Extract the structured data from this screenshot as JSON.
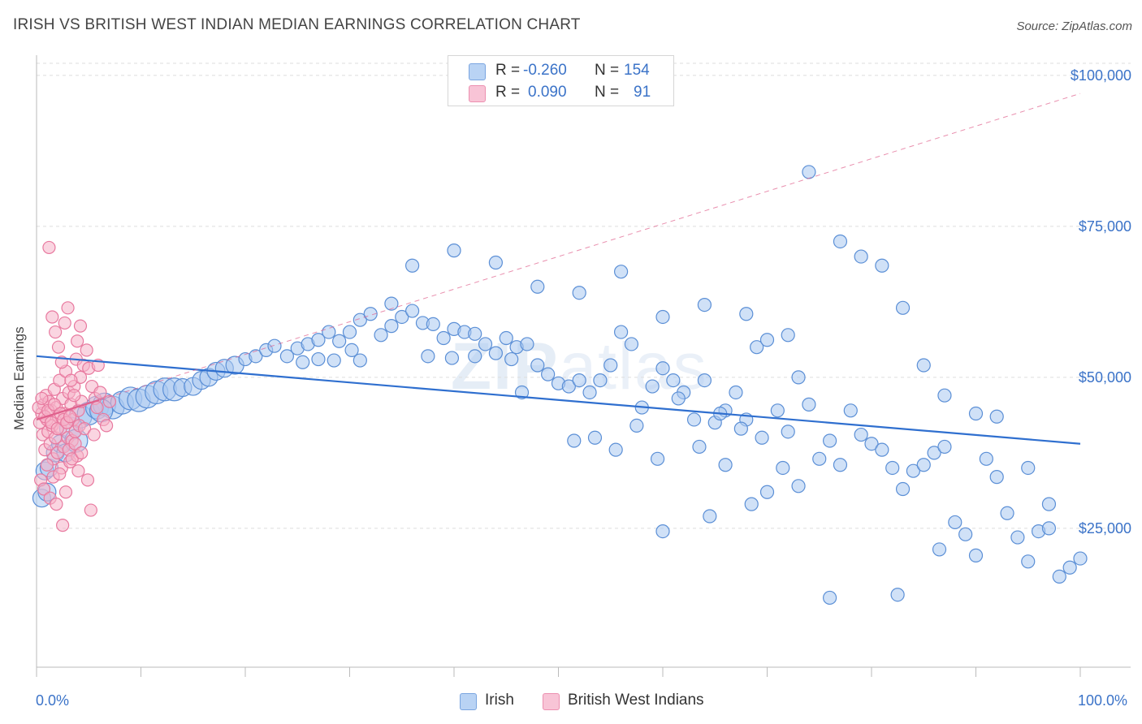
{
  "header": {
    "title": "IRISH VS BRITISH WEST INDIAN MEDIAN EARNINGS CORRELATION CHART",
    "source": "Source: ZipAtlas.com"
  },
  "watermark": {
    "bold": "ZIP",
    "light": "atlas"
  },
  "stats": {
    "r_label": "R =",
    "n_label": "N =",
    "rows": [
      {
        "r": "-0.260",
        "n": "154",
        "color": "#6a9fe0"
      },
      {
        "r": "0.090",
        "n": "91",
        "color": "#ee7fa6"
      }
    ]
  },
  "legend": {
    "items": [
      "Irish",
      "British West Indians"
    ]
  },
  "colors": {
    "blue_fill": "#a9c8f0",
    "blue_stroke": "#5b8fd6",
    "blue_line": "#2f6fcf",
    "pink_fill": "#f6b3c9",
    "pink_stroke": "#e8799f",
    "pink_line": "#e0608c",
    "axis_text": "#3b73c8",
    "grid": "#dddddd"
  },
  "chart_data": {
    "type": "scatter",
    "title": "IRISH VS BRITISH WEST INDIAN MEDIAN EARNINGS CORRELATION CHART",
    "xlabel": "",
    "ylabel": "Median Earnings",
    "x_tick_labels": [
      "0.0%",
      "100.0%"
    ],
    "y_tick_labels": [
      "$25,000",
      "$50,000",
      "$75,000",
      "$100,000"
    ],
    "y_ticks": [
      25000,
      50000,
      75000,
      100000
    ],
    "xlim": [
      0,
      100
    ],
    "ylim": [
      2000,
      102000
    ],
    "grid": true,
    "legend_position": "bottom-center",
    "series": [
      {
        "name": "Irish",
        "r": -0.26,
        "n": 154,
        "trend": [
          [
            0,
            53500
          ],
          [
            100,
            39000
          ]
        ],
        "points": [
          [
            0.5,
            30000
          ],
          [
            0.8,
            34500
          ],
          [
            1.2,
            35000
          ],
          [
            1.8,
            37500
          ],
          [
            2.3,
            39000
          ],
          [
            3.3,
            41500
          ],
          [
            4.2,
            43500
          ],
          [
            5.0,
            44000
          ],
          [
            5.8,
            45000
          ],
          [
            6.5,
            45500
          ],
          [
            7.3,
            45000
          ],
          [
            8.2,
            45800
          ],
          [
            9.0,
            46500
          ],
          [
            9.8,
            46200
          ],
          [
            10.6,
            46800
          ],
          [
            11.5,
            47500
          ],
          [
            12.3,
            48000
          ],
          [
            13.2,
            48000
          ],
          [
            14.0,
            48300
          ],
          [
            15.0,
            48500
          ],
          [
            15.8,
            49500
          ],
          [
            16.5,
            50000
          ],
          [
            17.2,
            51000
          ],
          [
            18.0,
            51500
          ],
          [
            19.0,
            52000
          ],
          [
            20.0,
            53000
          ],
          [
            21.0,
            53500
          ],
          [
            22.0,
            54500
          ],
          [
            22.8,
            55200
          ],
          [
            24.0,
            53500
          ],
          [
            25.0,
            54800
          ],
          [
            26.0,
            55500
          ],
          [
            27.0,
            56200
          ],
          [
            28.0,
            57500
          ],
          [
            29.0,
            56000
          ],
          [
            30.0,
            57500
          ],
          [
            31.0,
            59500
          ],
          [
            32.0,
            60500
          ],
          [
            33.0,
            57000
          ],
          [
            34.0,
            58500
          ],
          [
            35.0,
            60000
          ],
          [
            36.0,
            61000
          ],
          [
            37.0,
            59000
          ],
          [
            38.0,
            58800
          ],
          [
            39.0,
            56500
          ],
          [
            40.0,
            58000
          ],
          [
            41.0,
            57500
          ],
          [
            42.0,
            57200
          ],
          [
            43.0,
            55500
          ],
          [
            44.0,
            54000
          ],
          [
            45.0,
            56500
          ],
          [
            46.0,
            55000
          ],
          [
            47.0,
            55500
          ],
          [
            34.0,
            62200
          ],
          [
            31.0,
            52800
          ],
          [
            37.5,
            53500
          ],
          [
            39.8,
            53200
          ],
          [
            28.5,
            52800
          ],
          [
            30.2,
            54500
          ],
          [
            25.5,
            52500
          ],
          [
            27.0,
            53000
          ],
          [
            42.0,
            53500
          ],
          [
            48.0,
            52000
          ],
          [
            49.0,
            50500
          ],
          [
            50.0,
            49000
          ],
          [
            51.0,
            48500
          ],
          [
            52.0,
            49500
          ],
          [
            53.0,
            47500
          ],
          [
            54.0,
            49500
          ],
          [
            55.0,
            52000
          ],
          [
            56.0,
            57500
          ],
          [
            57.0,
            55500
          ],
          [
            58.0,
            45000
          ],
          [
            59.0,
            48500
          ],
          [
            60.0,
            51500
          ],
          [
            61.0,
            49500
          ],
          [
            62.0,
            47500
          ],
          [
            63.0,
            43000
          ],
          [
            64.0,
            49500
          ],
          [
            65.0,
            42500
          ],
          [
            66.0,
            44500
          ],
          [
            67.0,
            47500
          ],
          [
            68.0,
            43000
          ],
          [
            69.0,
            55000
          ],
          [
            70.0,
            56200
          ],
          [
            71.0,
            44500
          ],
          [
            72.0,
            41000
          ],
          [
            73.0,
            50000
          ],
          [
            74.0,
            45500
          ],
          [
            75.0,
            36500
          ],
          [
            76.0,
            39500
          ],
          [
            77.0,
            35500
          ],
          [
            78.0,
            44500
          ],
          [
            79.0,
            40500
          ],
          [
            80.0,
            39000
          ],
          [
            81.0,
            38000
          ],
          [
            82.0,
            35000
          ],
          [
            83.0,
            31500
          ],
          [
            84.0,
            34500
          ],
          [
            85.0,
            35500
          ],
          [
            86.0,
            37500
          ],
          [
            87.0,
            38500
          ],
          [
            88.0,
            26000
          ],
          [
            89.0,
            24000
          ],
          [
            90.0,
            20500
          ],
          [
            91.0,
            36500
          ],
          [
            92.0,
            33500
          ],
          [
            93.0,
            27500
          ],
          [
            94.0,
            23500
          ],
          [
            95.0,
            19500
          ],
          [
            96.0,
            24500
          ],
          [
            97.0,
            25000
          ],
          [
            98.0,
            17000
          ],
          [
            99.0,
            18500
          ],
          [
            100.0,
            20000
          ],
          [
            36.0,
            68500
          ],
          [
            40.0,
            71000
          ],
          [
            44.0,
            69000
          ],
          [
            48.0,
            65000
          ],
          [
            52.0,
            64000
          ],
          [
            56.0,
            67500
          ],
          [
            60.0,
            60000
          ],
          [
            64.0,
            62000
          ],
          [
            68.0,
            60500
          ],
          [
            72.0,
            57000
          ],
          [
            74.0,
            84000
          ],
          [
            77.0,
            72500
          ],
          [
            79.0,
            70000
          ],
          [
            81.0,
            68500
          ],
          [
            83.0,
            61500
          ],
          [
            85.0,
            52000
          ],
          [
            87.0,
            47000
          ],
          [
            90.0,
            44000
          ],
          [
            92.0,
            43500
          ],
          [
            95.0,
            35000
          ],
          [
            97.0,
            29000
          ],
          [
            66.0,
            35500
          ],
          [
            70.0,
            31000
          ],
          [
            73.0,
            32000
          ],
          [
            60.0,
            24500
          ],
          [
            64.5,
            27000
          ],
          [
            68.5,
            29000
          ],
          [
            76.0,
            13500
          ],
          [
            82.5,
            14000
          ],
          [
            86.5,
            21500
          ],
          [
            45.5,
            53000
          ],
          [
            46.5,
            47500
          ],
          [
            51.5,
            39500
          ],
          [
            53.5,
            40000
          ],
          [
            55.5,
            38000
          ],
          [
            57.5,
            42000
          ],
          [
            59.5,
            36500
          ],
          [
            61.5,
            46500
          ],
          [
            63.5,
            38500
          ],
          [
            65.5,
            44000
          ],
          [
            67.5,
            41500
          ],
          [
            69.5,
            40000
          ],
          [
            71.5,
            35000
          ],
          [
            1.0,
            31000
          ],
          [
            2.8,
            37500
          ],
          [
            3.8,
            39500
          ],
          [
            6.2,
            44500
          ]
        ]
      },
      {
        "name": "British West Indians",
        "r": 0.09,
        "n": 91,
        "trend": [
          [
            0,
            43000
          ],
          [
            100,
            97000
          ]
        ],
        "points": [
          [
            0.3,
            42500
          ],
          [
            0.5,
            44000
          ],
          [
            0.6,
            40500
          ],
          [
            0.7,
            45500
          ],
          [
            0.8,
            38000
          ],
          [
            0.9,
            47000
          ],
          [
            1.0,
            43000
          ],
          [
            1.1,
            41000
          ],
          [
            1.2,
            46000
          ],
          [
            1.3,
            39000
          ],
          [
            1.4,
            44500
          ],
          [
            1.5,
            42000
          ],
          [
            1.6,
            36500
          ],
          [
            1.7,
            48000
          ],
          [
            1.8,
            40000
          ],
          [
            1.9,
            45000
          ],
          [
            2.0,
            37500
          ],
          [
            2.1,
            43500
          ],
          [
            2.2,
            49500
          ],
          [
            2.3,
            41500
          ],
          [
            2.4,
            35000
          ],
          [
            2.5,
            46500
          ],
          [
            2.6,
            38500
          ],
          [
            2.7,
            44000
          ],
          [
            2.8,
            51000
          ],
          [
            2.9,
            42500
          ],
          [
            3.0,
            40000
          ],
          [
            3.1,
            47500
          ],
          [
            3.2,
            36000
          ],
          [
            3.3,
            45500
          ],
          [
            3.4,
            39500
          ],
          [
            3.5,
            43000
          ],
          [
            3.6,
            48500
          ],
          [
            3.7,
            41000
          ],
          [
            3.8,
            53000
          ],
          [
            3.9,
            37000
          ],
          [
            4.0,
            44500
          ],
          [
            4.1,
            42000
          ],
          [
            4.2,
            50000
          ],
          [
            4.3,
            46000
          ],
          [
            1.2,
            71500
          ],
          [
            1.5,
            60000
          ],
          [
            1.8,
            57500
          ],
          [
            2.1,
            55000
          ],
          [
            2.4,
            52500
          ],
          [
            2.7,
            59000
          ],
          [
            3.0,
            61500
          ],
          [
            3.3,
            49500
          ],
          [
            3.6,
            47000
          ],
          [
            3.9,
            56000
          ],
          [
            4.2,
            58500
          ],
          [
            4.5,
            52000
          ],
          [
            4.8,
            54500
          ],
          [
            5.0,
            51500
          ],
          [
            5.3,
            48500
          ],
          [
            5.6,
            46500
          ],
          [
            5.9,
            52000
          ],
          [
            0.4,
            33000
          ],
          [
            0.7,
            31500
          ],
          [
            1.0,
            35500
          ],
          [
            1.3,
            30000
          ],
          [
            1.6,
            33500
          ],
          [
            1.9,
            29000
          ],
          [
            2.2,
            34000
          ],
          [
            2.5,
            25500
          ],
          [
            2.8,
            31000
          ],
          [
            3.1,
            38000
          ],
          [
            3.4,
            36500
          ],
          [
            3.7,
            39000
          ],
          [
            4.0,
            34500
          ],
          [
            4.3,
            37500
          ],
          [
            4.6,
            41500
          ],
          [
            4.9,
            33000
          ],
          [
            5.2,
            28000
          ],
          [
            5.5,
            40500
          ],
          [
            5.8,
            45000
          ],
          [
            6.1,
            47500
          ],
          [
            6.4,
            43000
          ],
          [
            6.7,
            42000
          ],
          [
            7.0,
            46000
          ],
          [
            0.2,
            45000
          ],
          [
            0.5,
            46500
          ],
          [
            0.8,
            43500
          ],
          [
            1.1,
            44500
          ],
          [
            1.4,
            42500
          ],
          [
            1.7,
            45500
          ],
          [
            2.0,
            41500
          ],
          [
            2.3,
            44000
          ],
          [
            2.6,
            43000
          ],
          [
            2.9,
            42500
          ],
          [
            3.2,
            43500
          ]
        ]
      }
    ]
  }
}
